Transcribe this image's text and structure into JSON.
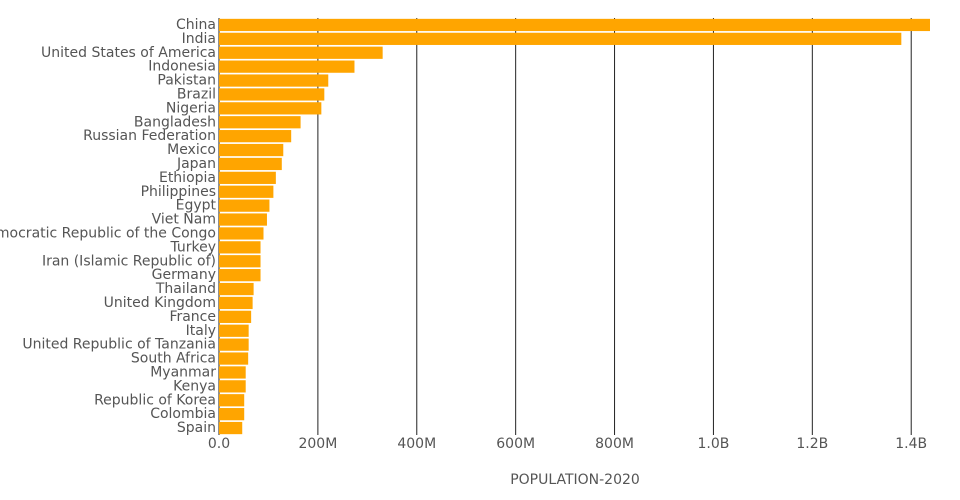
{
  "chart_data": {
    "type": "barh",
    "x_label": "POPULATION-2020",
    "categories": [
      "China",
      "India",
      "United States of America",
      "Indonesia",
      "Pakistan",
      "Brazil",
      "Nigeria",
      "Bangladesh",
      "Russian Federation",
      "Mexico",
      "Japan",
      "Ethiopia",
      "Philippines",
      "Egypt",
      "Viet Nam",
      "Democratic Republic of the Congo",
      "Turkey",
      "Iran (Islamic Republic of)",
      "Germany",
      "Thailand",
      "United Kingdom",
      "France",
      "Italy",
      "United Republic of Tanzania",
      "South Africa",
      "Myanmar",
      "Kenya",
      "Republic of Korea",
      "Colombia",
      "Spain"
    ],
    "values": [
      1438000000,
      1380000000,
      331000000,
      274000000,
      221000000,
      213000000,
      207000000,
      165000000,
      146000000,
      130000000,
      127000000,
      115000000,
      110000000,
      102000000,
      97000000,
      90000000,
      84000000,
      84000000,
      84000000,
      70000000,
      68000000,
      65000000,
      60000000,
      60000000,
      59000000,
      54000000,
      54000000,
      51000000,
      51000000,
      47000000
    ],
    "color": "#ffa500",
    "xlim": [
      0,
      1438000000
    ],
    "xticks": [
      {
        "value": 0,
        "label": "0.0"
      },
      {
        "value": 200000000,
        "label": "200M"
      },
      {
        "value": 400000000,
        "label": "400M"
      },
      {
        "value": 600000000,
        "label": "600M"
      },
      {
        "value": 800000000,
        "label": "800M"
      },
      {
        "value": 1000000000,
        "label": "1.0B"
      },
      {
        "value": 1200000000,
        "label": "1.2B"
      },
      {
        "value": 1400000000,
        "label": "1.4B"
      }
    ],
    "grid": true
  }
}
